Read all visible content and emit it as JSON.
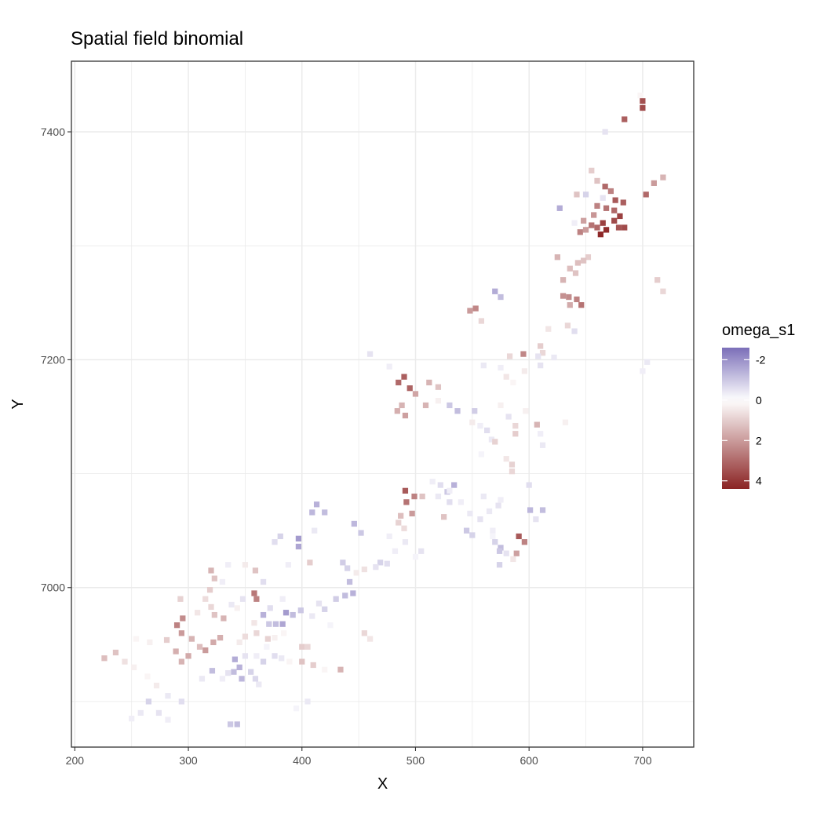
{
  "chart_data": {
    "type": "heatmap",
    "title": "Spatial field binomial",
    "xlabel": "X",
    "ylabel": "Y",
    "xlim": [
      197,
      745
    ],
    "ylim": [
      6860,
      7462
    ],
    "x_ticks": [
      200,
      300,
      400,
      500,
      600,
      700
    ],
    "x_tick_labels": [
      "200",
      "300",
      "400",
      "500",
      "600",
      "700"
    ],
    "y_ticks": [
      7000,
      7200,
      7400
    ],
    "y_tick_labels": [
      "7000",
      "7200",
      "7400"
    ],
    "grid": true,
    "cell_size": 5,
    "legend": {
      "title": "omega_s1",
      "placement": "right",
      "scale_min": -2.6,
      "scale_max": 4.4,
      "ticks": [
        -2,
        0,
        2,
        4
      ],
      "tick_labels": [
        "-2",
        "0",
        "2",
        "4"
      ],
      "colors": {
        "low": "#7b6fb8",
        "mid": "#ffffff",
        "high": "#8b2323"
      }
    },
    "cells": [
      [
        698,
        7432,
        0.2
      ],
      [
        700,
        7427,
        3.5
      ],
      [
        700,
        7421,
        3.6
      ],
      [
        684,
        7411,
        3.2
      ],
      [
        667,
        7400,
        -0.5
      ],
      [
        718,
        7360,
        1.5
      ],
      [
        710,
        7355,
        2.0
      ],
      [
        703,
        7345,
        3.0
      ],
      [
        683,
        7338,
        3.2
      ],
      [
        655,
        7366,
        1.0
      ],
      [
        660,
        7357,
        1.2
      ],
      [
        667,
        7352,
        3.0
      ],
      [
        672,
        7348,
        2.5
      ],
      [
        650,
        7345,
        -0.8
      ],
      [
        665,
        7342,
        -0.5
      ],
      [
        676,
        7340,
        3.3
      ],
      [
        660,
        7335,
        2.5
      ],
      [
        668,
        7333,
        2.8
      ],
      [
        675,
        7331,
        3.0
      ],
      [
        680,
        7326,
        3.8
      ],
      [
        675,
        7322,
        3.6
      ],
      [
        665,
        7320,
        3.8
      ],
      [
        668,
        7314,
        4.2
      ],
      [
        663,
        7310,
        4.3
      ],
      [
        660,
        7316,
        3.0
      ],
      [
        655,
        7318,
        2.8
      ],
      [
        650,
        7314,
        2.0
      ],
      [
        645,
        7312,
        2.5
      ],
      [
        684,
        7316,
        3.6
      ],
      [
        679,
        7316,
        3.4
      ],
      [
        640,
        7320,
        -0.3
      ],
      [
        642,
        7345,
        1.2
      ],
      [
        627,
        7333,
        -1.5
      ],
      [
        652,
        7290,
        1.0
      ],
      [
        648,
        7287,
        1.2
      ],
      [
        643,
        7285,
        1.3
      ],
      [
        625,
        7290,
        1.5
      ],
      [
        636,
        7280,
        1.3
      ],
      [
        641,
        7276,
        1.2
      ],
      [
        630,
        7270,
        1.5
      ],
      [
        630,
        7256,
        2.2
      ],
      [
        635,
        7255,
        2.3
      ],
      [
        642,
        7253,
        2.5
      ],
      [
        646,
        7248,
        2.8
      ],
      [
        636,
        7248,
        1.7
      ],
      [
        570,
        7260,
        -1.5
      ],
      [
        575,
        7255,
        -1.2
      ],
      [
        553,
        7245,
        2.4
      ],
      [
        548,
        7243,
        2.0
      ],
      [
        558,
        7234,
        0.8
      ],
      [
        634,
        7230,
        0.8
      ],
      [
        640,
        7225,
        -0.6
      ],
      [
        617,
        7227,
        0.5
      ],
      [
        610,
        7212,
        1.0
      ],
      [
        612,
        7206,
        0.8
      ],
      [
        595,
        7205,
        2.4
      ],
      [
        583,
        7203,
        0.8
      ],
      [
        608,
        7203,
        -0.5
      ],
      [
        622,
        7202,
        -0.4
      ],
      [
        610,
        7195,
        -0.5
      ],
      [
        596,
        7190,
        0.4
      ],
      [
        580,
        7185,
        0.5
      ],
      [
        586,
        7180,
        0.2
      ],
      [
        560,
        7195,
        -0.4
      ],
      [
        575,
        7193,
        -0.3
      ],
      [
        460,
        7205,
        -0.5
      ],
      [
        477,
        7194,
        -0.3
      ],
      [
        490,
        7185,
        3.2
      ],
      [
        485,
        7180,
        3.0
      ],
      [
        495,
        7175,
        3.1
      ],
      [
        500,
        7170,
        1.8
      ],
      [
        488,
        7160,
        1.5
      ],
      [
        512,
        7180,
        1.5
      ],
      [
        520,
        7176,
        1.2
      ],
      [
        520,
        7164,
        0.3
      ],
      [
        509,
        7160,
        1.5
      ],
      [
        484,
        7155,
        1.6
      ],
      [
        491,
        7151,
        1.9
      ],
      [
        530,
        7160,
        -1.0
      ],
      [
        537,
        7155,
        -1.2
      ],
      [
        552,
        7155,
        -0.9
      ],
      [
        550,
        7145,
        0.4
      ],
      [
        557,
        7142,
        -0.3
      ],
      [
        563,
        7138,
        -0.6
      ],
      [
        567,
        7130,
        -0.4
      ],
      [
        570,
        7128,
        0.9
      ],
      [
        575,
        7160,
        0.3
      ],
      [
        582,
        7150,
        -0.5
      ],
      [
        588,
        7142,
        0.8
      ],
      [
        588,
        7135,
        1.0
      ],
      [
        607,
        7143,
        1.5
      ],
      [
        632,
        7145,
        0.3
      ],
      [
        597,
        7155,
        0.3
      ],
      [
        558,
        7117,
        -0.2
      ],
      [
        580,
        7113,
        0.5
      ],
      [
        585,
        7108,
        0.9
      ],
      [
        585,
        7102,
        0.8
      ],
      [
        610,
        7135,
        -0.3
      ],
      [
        612,
        7125,
        -0.4
      ],
      [
        515,
        7093,
        -0.3
      ],
      [
        522,
        7090,
        -0.6
      ],
      [
        534,
        7090,
        -1.4
      ],
      [
        528,
        7084,
        -1.0
      ],
      [
        520,
        7080,
        -0.4
      ],
      [
        540,
        7075,
        -0.3
      ],
      [
        548,
        7065,
        -0.4
      ],
      [
        557,
        7060,
        -0.5
      ],
      [
        568,
        7050,
        -0.3
      ],
      [
        568,
        7045,
        -0.2
      ],
      [
        530,
        7075,
        -0.6
      ],
      [
        560,
        7080,
        -0.4
      ],
      [
        575,
        7077,
        -0.3
      ],
      [
        573,
        7072,
        -0.5
      ],
      [
        565,
        7067,
        -0.4
      ],
      [
        491,
        7085,
        3.3
      ],
      [
        499,
        7080,
        2.5
      ],
      [
        492,
        7075,
        2.8
      ],
      [
        506,
        7080,
        1.2
      ],
      [
        530,
        7085,
        -0.3
      ],
      [
        487,
        7063,
        1.3
      ],
      [
        497,
        7065,
        2.0
      ],
      [
        485,
        7057,
        0.9
      ],
      [
        490,
        7052,
        0.7
      ],
      [
        525,
        7062,
        1.2
      ],
      [
        545,
        7050,
        -1.0
      ],
      [
        550,
        7046,
        -0.8
      ],
      [
        570,
        7040,
        -0.8
      ],
      [
        575,
        7035,
        -1.2
      ],
      [
        580,
        7030,
        -0.5
      ],
      [
        600,
        7090,
        -0.6
      ],
      [
        612,
        7068,
        -1.2
      ],
      [
        601,
        7068,
        -1.3
      ],
      [
        606,
        7060,
        -0.5
      ],
      [
        591,
        7045,
        3.3
      ],
      [
        596,
        7040,
        2.5
      ],
      [
        589,
        7030,
        1.9
      ],
      [
        586,
        7025,
        0.5
      ],
      [
        574,
        7032,
        -1.0
      ],
      [
        574,
        7020,
        -0.8
      ],
      [
        505,
        7032,
        -0.5
      ],
      [
        500,
        7027,
        -0.2
      ],
      [
        469,
        7022,
        -0.8
      ],
      [
        475,
        7021,
        -0.6
      ],
      [
        465,
        7018,
        -0.5
      ],
      [
        455,
        7016,
        0.6
      ],
      [
        448,
        7013,
        0.4
      ],
      [
        436,
        7022,
        -0.9
      ],
      [
        440,
        7017,
        -0.8
      ],
      [
        442,
        7005,
        -1.2
      ],
      [
        445,
        6995,
        -1.4
      ],
      [
        438,
        6993,
        -1.2
      ],
      [
        430,
        6990,
        -0.9
      ],
      [
        415,
        6986,
        -0.5
      ],
      [
        420,
        6981,
        -0.8
      ],
      [
        409,
        6975,
        -0.4
      ],
      [
        425,
        6967,
        -0.2
      ],
      [
        455,
        6960,
        0.8
      ],
      [
        460,
        6955,
        0.5
      ],
      [
        413,
        7073,
        -1.4
      ],
      [
        409,
        7066,
        -1.3
      ],
      [
        420,
        7066,
        -1.2
      ],
      [
        446,
        7056,
        -1.3
      ],
      [
        452,
        7048,
        -1.0
      ],
      [
        477,
        7045,
        -0.3
      ],
      [
        491,
        7040,
        -0.4
      ],
      [
        482,
        7032,
        -0.3
      ],
      [
        397,
        7043,
        -1.8
      ],
      [
        397,
        7036,
        -1.6
      ],
      [
        381,
        7045,
        -0.8
      ],
      [
        376,
        7040,
        -0.6
      ],
      [
        407,
        7022,
        1.0
      ],
      [
        388,
        7020,
        -0.3
      ],
      [
        335,
        7020,
        -0.3
      ],
      [
        350,
        7020,
        0.4
      ],
      [
        359,
        7015,
        1.2
      ],
      [
        320,
        7015,
        1.5
      ],
      [
        323,
        7008,
        1.2
      ],
      [
        330,
        7005,
        -0.3
      ],
      [
        366,
        7005,
        -0.6
      ],
      [
        358,
        6995,
        2.7
      ],
      [
        360,
        6990,
        2.5
      ],
      [
        319,
        6998,
        1.0
      ],
      [
        315,
        6990,
        0.7
      ],
      [
        348,
        6990,
        -0.5
      ],
      [
        383,
        6990,
        -0.3
      ],
      [
        320,
        6983,
        0.8
      ],
      [
        308,
        6978,
        0.5
      ],
      [
        295,
        6973,
        2.3
      ],
      [
        290,
        6967,
        2.5
      ],
      [
        294,
        6960,
        2.0
      ],
      [
        293,
        6990,
        0.9
      ],
      [
        323,
        6976,
        1.2
      ],
      [
        331,
        6973,
        1.5
      ],
      [
        338,
        6985,
        -0.4
      ],
      [
        343,
        6982,
        0.3
      ],
      [
        372,
        6982,
        -0.6
      ],
      [
        366,
        6976,
        -1.4
      ],
      [
        386,
        6978,
        -1.8
      ],
      [
        383,
        6968,
        -1.6
      ],
      [
        377,
        6968,
        -1.2
      ],
      [
        371,
        6968,
        -1.0
      ],
      [
        392,
        6976,
        -1.2
      ],
      [
        399,
        6980,
        -1.0
      ],
      [
        358,
        6969,
        0.5
      ],
      [
        360,
        6960,
        0.8
      ],
      [
        370,
        6955,
        0.9
      ],
      [
        350,
        6957,
        0.7
      ],
      [
        345,
        6952,
        0.4
      ],
      [
        369,
        6948,
        -0.2
      ],
      [
        376,
        6956,
        0.3
      ],
      [
        384,
        6960,
        0.2
      ],
      [
        350,
        6940,
        -0.5
      ],
      [
        360,
        6940,
        -0.3
      ],
      [
        366,
        6935,
        -0.8
      ],
      [
        376,
        6940,
        -0.6
      ],
      [
        382,
        6938,
        -0.4
      ],
      [
        389,
        6935,
        0.2
      ],
      [
        400,
        6948,
        1.0
      ],
      [
        405,
        6948,
        0.8
      ],
      [
        400,
        6935,
        1.2
      ],
      [
        410,
        6932,
        1.0
      ],
      [
        434,
        6928,
        1.5
      ],
      [
        420,
        6928,
        0.2
      ],
      [
        341,
        6937,
        -1.5
      ],
      [
        345,
        6930,
        -1.4
      ],
      [
        340,
        6926,
        -1.2
      ],
      [
        347,
        6920,
        -1.3
      ],
      [
        335,
        6925,
        -0.5
      ],
      [
        330,
        6920,
        -0.3
      ],
      [
        321,
        6927,
        -1.2
      ],
      [
        312,
        6920,
        -0.4
      ],
      [
        355,
        6926,
        -0.8
      ],
      [
        359,
        6920,
        -0.7
      ],
      [
        362,
        6915,
        -0.4
      ],
      [
        328,
        6956,
        1.6
      ],
      [
        322,
        6952,
        1.7
      ],
      [
        315,
        6945,
        2.0
      ],
      [
        300,
        6940,
        1.7
      ],
      [
        294,
        6935,
        1.5
      ],
      [
        289,
        6944,
        1.6
      ],
      [
        310,
        6948,
        1.3
      ],
      [
        303,
        6955,
        1.5
      ],
      [
        281,
        6954,
        1.0
      ],
      [
        266,
        6952,
        0.3
      ],
      [
        254,
        6955,
        0.2
      ],
      [
        236,
        6943,
        1.2
      ],
      [
        226,
        6938,
        1.3
      ],
      [
        244,
        6935,
        0.6
      ],
      [
        252,
        6930,
        0.3
      ],
      [
        264,
        6922,
        0.2
      ],
      [
        272,
        6914,
        0.4
      ],
      [
        282,
        6905,
        -0.4
      ],
      [
        294,
        6900,
        -0.6
      ],
      [
        265,
        6900,
        -0.8
      ],
      [
        258,
        6890,
        -0.4
      ],
      [
        250,
        6885,
        -0.3
      ],
      [
        274,
        6890,
        -0.5
      ],
      [
        282,
        6884,
        -0.3
      ],
      [
        343,
        6880,
        -1.2
      ],
      [
        337,
        6880,
        -1.0
      ],
      [
        405,
        6900,
        -0.4
      ],
      [
        395,
        6894,
        -0.2
      ],
      [
        411,
        7050,
        -0.4
      ],
      [
        704,
        7198,
        -0.4
      ],
      [
        700,
        7190,
        -0.3
      ],
      [
        713,
        7270,
        1.0
      ],
      [
        718,
        7260,
        0.8
      ],
      [
        648,
        7322,
        1.9
      ],
      [
        657,
        7327,
        2.1
      ]
    ]
  }
}
